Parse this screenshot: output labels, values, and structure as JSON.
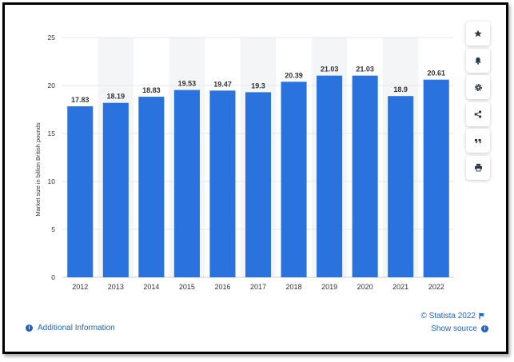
{
  "chart_data": {
    "type": "bar",
    "categories": [
      "2012",
      "2013",
      "2014",
      "2015",
      "2016",
      "2017",
      "2018",
      "2019",
      "2020",
      "2021",
      "2022"
    ],
    "values": [
      17.83,
      18.19,
      18.83,
      19.53,
      19.47,
      19.3,
      20.39,
      21.03,
      21.03,
      18.9,
      20.61
    ],
    "data_labels": [
      "17.83",
      "18.19",
      "18.83",
      "19.53",
      "19.47",
      "19.3",
      "20.39",
      "21.03",
      "21.03",
      "18.9",
      "20.61"
    ],
    "ylabel": "Market size in billion British pounds",
    "xlabel": "",
    "ylim": [
      0,
      25
    ],
    "yticks": [
      0,
      5,
      10,
      15,
      20,
      25
    ],
    "ytick_labels": [
      "0",
      "5",
      "10",
      "15",
      "20",
      "25"
    ],
    "grid": true,
    "bar_color": "#2a72dd",
    "alt_band_color": "#f4f5f7"
  },
  "toolbar": {
    "items": [
      {
        "icon": "star-icon"
      },
      {
        "icon": "bell-icon"
      },
      {
        "icon": "gear-icon"
      },
      {
        "icon": "share-icon"
      },
      {
        "icon": "quote-icon"
      },
      {
        "icon": "print-icon"
      }
    ]
  },
  "footer": {
    "additional_info": "Additional Information",
    "credit": "© Statista 2022",
    "show_source": "Show source"
  },
  "colors": {
    "link": "#1f63c6",
    "icon": "#2b3848"
  }
}
